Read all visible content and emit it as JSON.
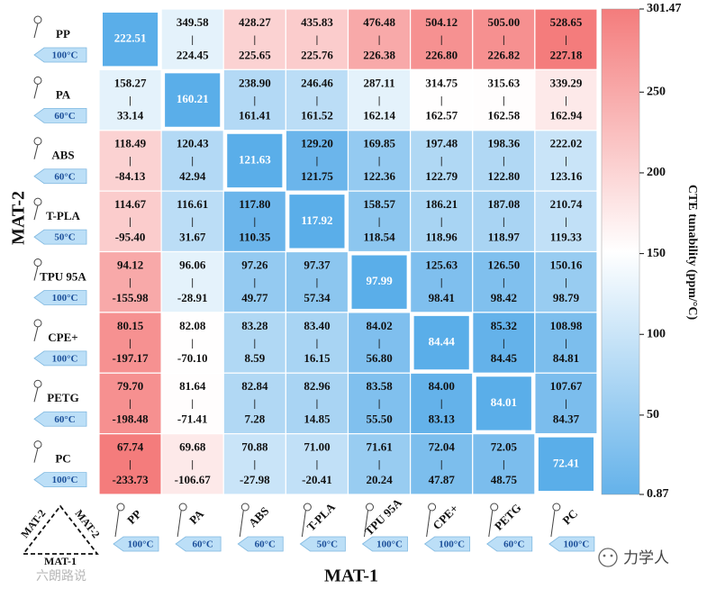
{
  "chart_data": {
    "type": "heatmap",
    "xlabel": "MAT-1",
    "ylabel": "MAT-2",
    "corner_labels": {
      "left": "MAT-2",
      "right": "MAT-2",
      "bottom": "MAT-1"
    },
    "materials": [
      {
        "name": "PP",
        "temp": "100°C"
      },
      {
        "name": "PA",
        "temp": "60°C"
      },
      {
        "name": "ABS",
        "temp": "60°C"
      },
      {
        "name": "T-PLA",
        "temp": "50°C"
      },
      {
        "name": "TPU 95A",
        "temp": "100°C"
      },
      {
        "name": "CPE+",
        "temp": "100°C"
      },
      {
        "name": "PETG",
        "temp": "60°C"
      },
      {
        "name": "PC",
        "temp": "100°C"
      }
    ],
    "diagonal": [
      "222.51",
      "160.21",
      "121.63",
      "117.92",
      "97.99",
      "84.44",
      "84.01",
      "72.41"
    ],
    "cells": [
      [
        null,
        [
          "349.58",
          "224.45"
        ],
        [
          "428.27",
          "225.65"
        ],
        [
          "435.83",
          "225.76"
        ],
        [
          "476.48",
          "226.38"
        ],
        [
          "504.12",
          "226.80"
        ],
        [
          "505.00",
          "226.82"
        ],
        [
          "528.65",
          "227.18"
        ]
      ],
      [
        [
          "158.27",
          "33.14"
        ],
        null,
        [
          "238.90",
          "161.41"
        ],
        [
          "246.46",
          "161.52"
        ],
        [
          "287.11",
          "162.14"
        ],
        [
          "314.75",
          "162.57"
        ],
        [
          "315.63",
          "162.58"
        ],
        [
          "339.29",
          "162.94"
        ]
      ],
      [
        [
          "118.49",
          "-84.13"
        ],
        [
          "120.43",
          "42.94"
        ],
        null,
        [
          "129.20",
          "121.75"
        ],
        [
          "169.85",
          "122.36"
        ],
        [
          "197.48",
          "122.79"
        ],
        [
          "198.36",
          "122.80"
        ],
        [
          "222.02",
          "123.16"
        ]
      ],
      [
        [
          "114.67",
          "-95.40"
        ],
        [
          "116.61",
          "31.67"
        ],
        [
          "117.80",
          "110.35"
        ],
        null,
        [
          "158.57",
          "118.54"
        ],
        [
          "186.21",
          "118.96"
        ],
        [
          "187.08",
          "118.97"
        ],
        [
          "210.74",
          "119.33"
        ]
      ],
      [
        [
          "94.12",
          "-155.98"
        ],
        [
          "96.06",
          "-28.91"
        ],
        [
          "97.26",
          "49.77"
        ],
        [
          "97.37",
          "57.34"
        ],
        null,
        [
          "125.63",
          "98.41"
        ],
        [
          "126.50",
          "98.42"
        ],
        [
          "150.16",
          "98.79"
        ]
      ],
      [
        [
          "80.15",
          "-197.17"
        ],
        [
          "82.08",
          "-70.10"
        ],
        [
          "83.28",
          "8.59"
        ],
        [
          "83.40",
          "16.15"
        ],
        [
          "84.02",
          "56.80"
        ],
        null,
        [
          "85.32",
          "84.45"
        ],
        [
          "108.98",
          "84.81"
        ]
      ],
      [
        [
          "79.70",
          "-198.48"
        ],
        [
          "81.64",
          "-71.41"
        ],
        [
          "82.84",
          "7.28"
        ],
        [
          "82.96",
          "14.85"
        ],
        [
          "83.58",
          "55.50"
        ],
        [
          "84.00",
          "83.13"
        ],
        null,
        [
          "107.67",
          "84.37"
        ]
      ],
      [
        [
          "67.74",
          "-233.73"
        ],
        [
          "69.68",
          "-106.67"
        ],
        [
          "70.88",
          "-27.98"
        ],
        [
          "71.00",
          "-20.41"
        ],
        [
          "71.61",
          "20.24"
        ],
        [
          "72.04",
          "47.87"
        ],
        [
          "72.05",
          "48.75"
        ],
        null
      ]
    ],
    "colorbar": {
      "label": "CTE tunability (ppm/°C)",
      "min": 0.87,
      "max": 301.47,
      "ticks": [
        "301.47",
        "250",
        "200",
        "150",
        "100",
        "50",
        "0.87"
      ],
      "colors": {
        "low": "#64b2ea",
        "mid": "#ffffff",
        "high": "#f47c7c"
      }
    }
  },
  "watermarks": {
    "left": "六朗路说",
    "right": "力学人"
  },
  "colors": {
    "diag_cell": "#5aaee9",
    "border_white": "#ffffff",
    "temp_tag": "#bcdff7"
  }
}
